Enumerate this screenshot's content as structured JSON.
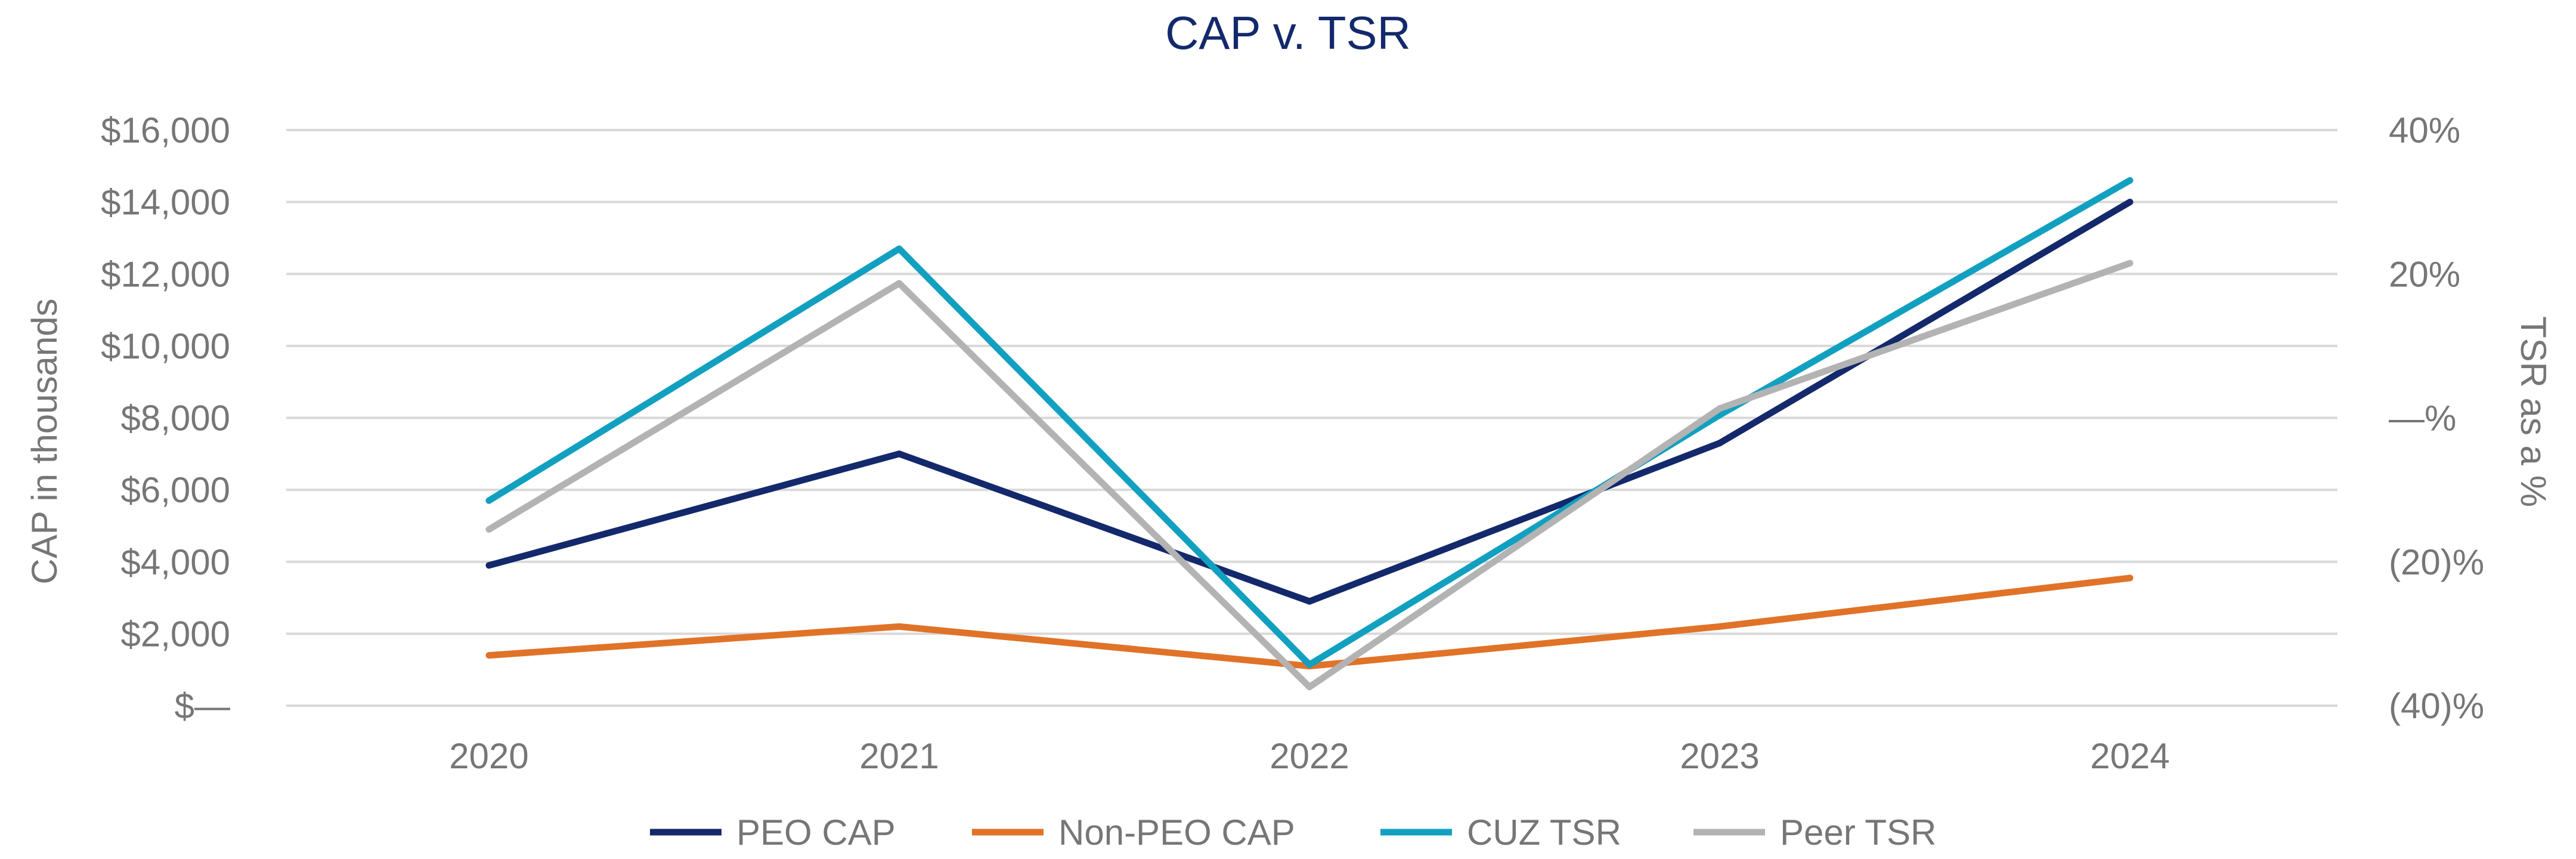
{
  "chart_data": {
    "type": "line",
    "title": "CAP v. TSR",
    "categories": [
      "2020",
      "2021",
      "2022",
      "2023",
      "2024"
    ],
    "y_left": {
      "label": "CAP in thousands",
      "range": [
        0,
        16000
      ],
      "ticks": [
        0,
        2000,
        4000,
        6000,
        8000,
        10000,
        12000,
        14000,
        16000
      ],
      "tick_labels": [
        "$—",
        "$2,000",
        "$4,000",
        "$6,000",
        "$8,000",
        "$10,000",
        "$12,000",
        "$14,000",
        "$16,000"
      ]
    },
    "y_right": {
      "label": "TSR as a %",
      "range": [
        -40,
        40
      ],
      "ticks": [
        -40,
        -20,
        0,
        20,
        40
      ],
      "tick_labels": [
        "(40)%",
        "(20)%",
        "—%",
        "20%",
        "40%"
      ]
    },
    "grid": true,
    "legend_position": "bottom",
    "series": [
      {
        "name": "PEO CAP",
        "axis": "left",
        "color": "#13296b",
        "values": [
          3900,
          7000,
          2900,
          7300,
          14000
        ]
      },
      {
        "name": "Non-PEO CAP",
        "axis": "left",
        "color": "#e07328",
        "values": [
          1400,
          2200,
          1100,
          2200,
          3550
        ]
      },
      {
        "name": "CUZ TSR",
        "axis": "right",
        "color": "#12a0c0",
        "values": [
          -11.5,
          23.5,
          -34.3,
          0.4,
          33
        ]
      },
      {
        "name": "Peer TSR",
        "axis": "right",
        "color": "#b3b3b3",
        "values": [
          -15.5,
          18.7,
          -37.4,
          1.3,
          21.5
        ]
      }
    ]
  },
  "colors": {
    "title": "#13296b",
    "text": "#767676",
    "grid": "#d9d9d9"
  }
}
